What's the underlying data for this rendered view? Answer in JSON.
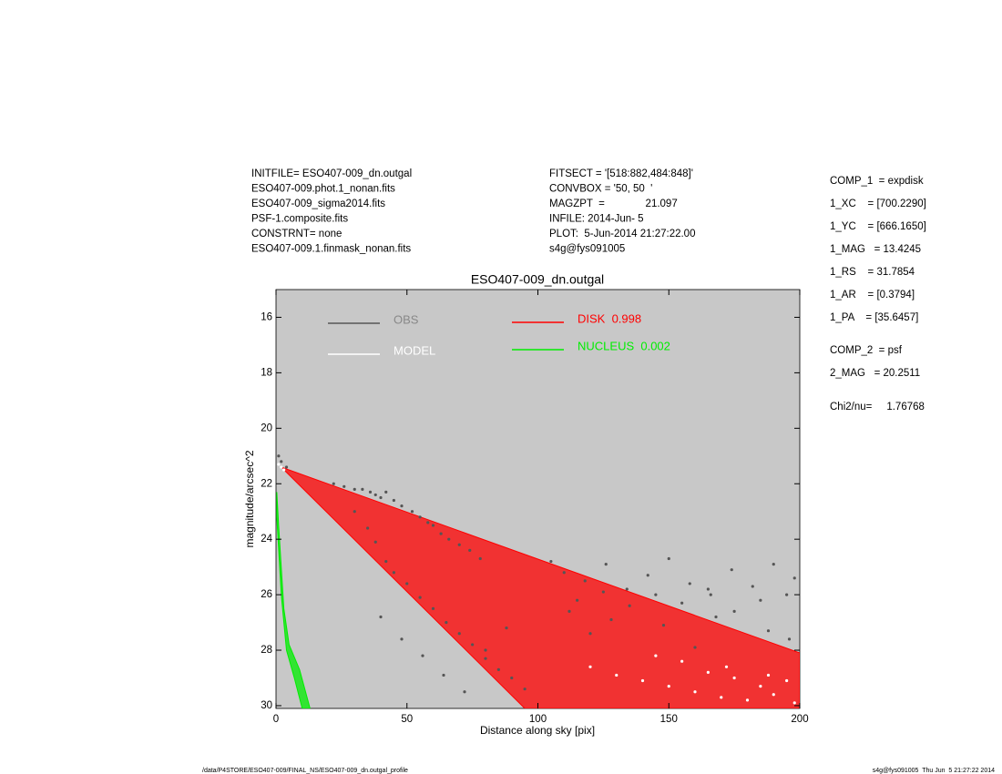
{
  "header": {
    "left": [
      "INITFILE= ESO407-009_dn.outgal",
      "ESO407-009.phot.1_nonan.fits",
      "ESO407-009_sigma2014.fits",
      "PSF-1.composite.fits",
      "CONSTRNT= none",
      "ESO407-009.1.finmask_nonan.fits"
    ],
    "middle": [
      "FITSECT = '[518:882,484:848]'",
      "CONVBOX = '50, 50  '",
      "MAGZPT  =              21.097",
      "INFILE: 2014-Jun- 5",
      "PLOT:  5-Jun-2014 21:27:22.00",
      "s4g@fys091005"
    ],
    "right": [
      "COMP_1  = expdisk",
      "1_XC    = [700.2290]",
      "1_YC    = [666.1650]",
      "1_MAG   = 13.4245",
      "1_RS    = 31.7854",
      "1_AR    = [0.3794]",
      "1_PA    = [35.6457]",
      "COMP_2  = psf",
      "2_MAG   = 20.2511",
      "Chi2/nu=     1.76768"
    ]
  },
  "footer": {
    "left": "/data/P4STORE/ESO407-009/FINAL_NS/ESO407-009_dn.outgal_profile",
    "right": "s4g@fys091005  Thu Jun  5 21:27:22 2014"
  },
  "chart_data": {
    "type": "scatter",
    "title": "ESO407-009_dn.outgal",
    "x_label": "Distance along sky [pix]",
    "y_label": "magnitude/arcsec^2",
    "xlim": [
      0,
      200
    ],
    "ylim": [
      15,
      30.1
    ],
    "y_inverted": true,
    "xticks": [
      0,
      50,
      100,
      150,
      200
    ],
    "yticks": [
      16,
      18,
      20,
      22,
      24,
      26,
      28,
      30
    ],
    "background": "#c8c8c8",
    "series": [
      {
        "name": "OBS",
        "color": "#555555",
        "kind": "points",
        "x": [
          1,
          2,
          4,
          22,
          26,
          30,
          33,
          36,
          38,
          40,
          42,
          45,
          48,
          52,
          55,
          58,
          60,
          63,
          66,
          70,
          74,
          78,
          30,
          35,
          38,
          42,
          45,
          50,
          55,
          60,
          65,
          70,
          75,
          80,
          85,
          90,
          95,
          40,
          48,
          56,
          64,
          72,
          80,
          88,
          110,
          118,
          126,
          134,
          142,
          150,
          158,
          166,
          174,
          182,
          190,
          198,
          105,
          115,
          125,
          135,
          145,
          155,
          165,
          175,
          185,
          195,
          112,
          128,
          148,
          168,
          188,
          196,
          120,
          160
        ],
        "y": [
          21.0,
          21.2,
          21.4,
          22.0,
          22.1,
          22.2,
          22.2,
          22.3,
          22.4,
          22.5,
          22.3,
          22.6,
          22.8,
          23.0,
          23.2,
          23.4,
          23.5,
          23.8,
          24.0,
          24.2,
          24.4,
          24.7,
          23.0,
          23.6,
          24.1,
          24.8,
          25.2,
          25.6,
          26.1,
          26.5,
          27.0,
          27.4,
          27.8,
          28.3,
          28.7,
          29.0,
          29.4,
          26.8,
          27.6,
          28.2,
          28.9,
          29.5,
          28.0,
          27.2,
          25.2,
          25.5,
          24.9,
          25.8,
          25.3,
          24.7,
          25.6,
          26.0,
          25.1,
          25.7,
          24.9,
          25.4,
          24.8,
          26.2,
          25.9,
          26.4,
          26.0,
          26.3,
          25.8,
          26.6,
          26.2,
          26.0,
          26.6,
          26.9,
          27.1,
          26.8,
          27.3,
          27.6,
          27.4,
          27.9
        ]
      },
      {
        "name": "MODEL",
        "color": "#ffffff",
        "kind": "points",
        "x": [
          1,
          2,
          3,
          120,
          130,
          140,
          150,
          160,
          165,
          170,
          175,
          180,
          185,
          190,
          195,
          198,
          155,
          172,
          188,
          145
        ],
        "y": [
          21.3,
          21.4,
          21.5,
          28.6,
          28.9,
          29.1,
          29.3,
          29.5,
          28.8,
          29.7,
          29.0,
          29.8,
          29.3,
          29.6,
          29.1,
          29.9,
          28.4,
          28.6,
          28.9,
          28.2
        ]
      },
      {
        "name": "DISK  0.998",
        "color": "#ff0000",
        "kind": "area",
        "x": [
          2,
          200,
          200,
          95
        ],
        "y": [
          21.4,
          28.1,
          30.1,
          30.1
        ]
      },
      {
        "name": "NUCLEUS  0.002",
        "color": "#00ee00",
        "kind": "area",
        "x": [
          0.3,
          1,
          3,
          5,
          9,
          13,
          10,
          7,
          4,
          2,
          0.3
        ],
        "y": [
          22.3,
          23.5,
          26.5,
          27.8,
          28.7,
          30.1,
          30.1,
          29.0,
          28.0,
          26.0,
          23.2
        ]
      }
    ]
  }
}
